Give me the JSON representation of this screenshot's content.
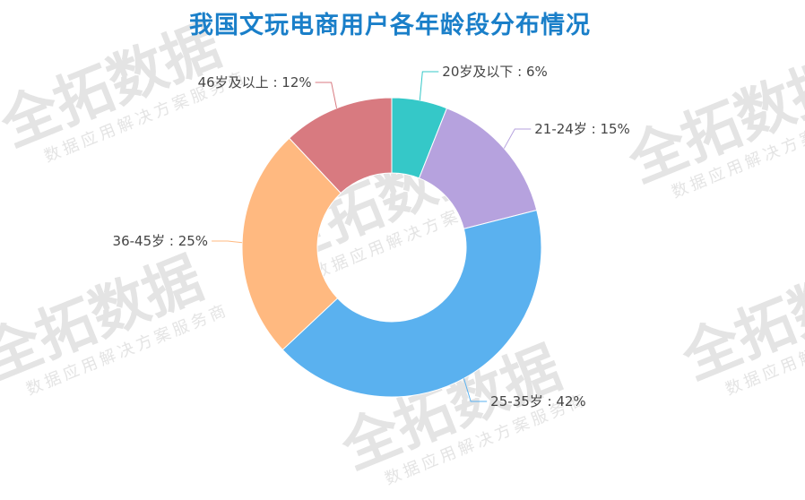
{
  "title": "我国文玩电商用户各年龄段分布情况",
  "watermark": {
    "brand": "全拓数据",
    "tagline": "数据应用解决方案服务商"
  },
  "chart_data": {
    "type": "pie",
    "title": "我国文玩电商用户各年龄段分布情况",
    "donut": true,
    "slices": [
      {
        "label": "20岁及以下",
        "value": 6,
        "display": "20岁及以下 : 6%",
        "color": "#35c8c8"
      },
      {
        "label": "21-24岁",
        "value": 15,
        "display": "21-24岁 : 15%",
        "color": "#b6a2de"
      },
      {
        "label": "25-35岁",
        "value": 42,
        "display": "25-35岁 : 42%",
        "color": "#5ab1ef"
      },
      {
        "label": "36-45岁",
        "value": 25,
        "display": "36-45岁 : 25%",
        "color": "#ffb980"
      },
      {
        "label": "46岁及以上",
        "value": 12,
        "display": "46岁及以上 : 12%",
        "color": "#d87a80"
      }
    ]
  }
}
